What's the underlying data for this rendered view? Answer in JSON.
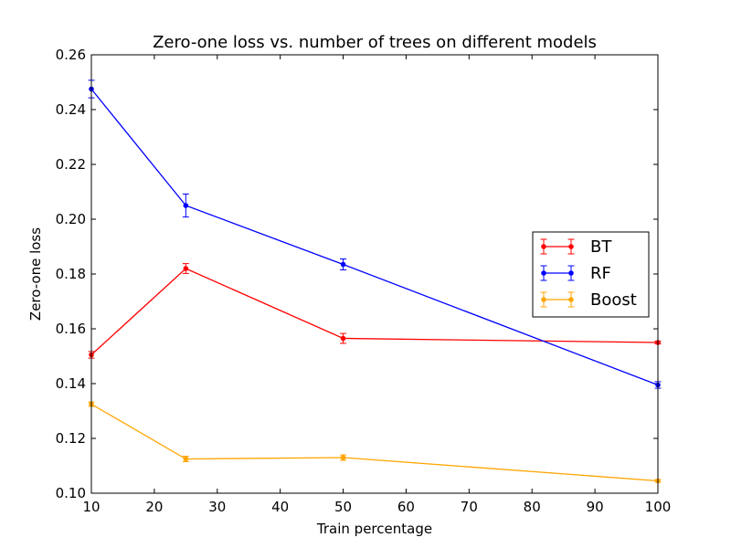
{
  "chart_data": {
    "type": "line",
    "title": "Zero-one loss vs. number of trees on different models",
    "xlabel": "Train percentage",
    "ylabel": "Zero-one loss",
    "xlim": [
      10,
      100
    ],
    "ylim": [
      0.1,
      0.26
    ],
    "xticks": [
      10,
      20,
      30,
      40,
      50,
      60,
      70,
      80,
      90,
      100
    ],
    "yticks": [
      0.1,
      0.12,
      0.14,
      0.16,
      0.18,
      0.2,
      0.22,
      0.24,
      0.26
    ],
    "xtick_labels": [
      "10",
      "20",
      "30",
      "40",
      "50",
      "60",
      "70",
      "80",
      "90",
      "100"
    ],
    "ytick_labels": [
      "0.10",
      "0.12",
      "0.14",
      "0.16",
      "0.18",
      "0.20",
      "0.22",
      "0.24",
      "0.26"
    ],
    "grid": false,
    "legend_position": "center-right",
    "x": [
      10,
      25,
      50,
      100
    ],
    "series": [
      {
        "name": "BT",
        "color": "#ff0000",
        "values": [
          0.1505,
          0.182,
          0.1565,
          0.155
        ],
        "errors": [
          0.0012,
          0.0018,
          0.0018,
          0.0005
        ]
      },
      {
        "name": "RF",
        "color": "#0000ff",
        "values": [
          0.2475,
          0.205,
          0.1835,
          0.1395
        ],
        "errors": [
          0.0032,
          0.0042,
          0.002,
          0.0012
        ]
      },
      {
        "name": "Boost",
        "color": "#ffa500",
        "values": [
          0.1325,
          0.1125,
          0.113,
          0.1045
        ],
        "errors": [
          0.0008,
          0.001,
          0.001,
          0.0005
        ]
      }
    ]
  }
}
